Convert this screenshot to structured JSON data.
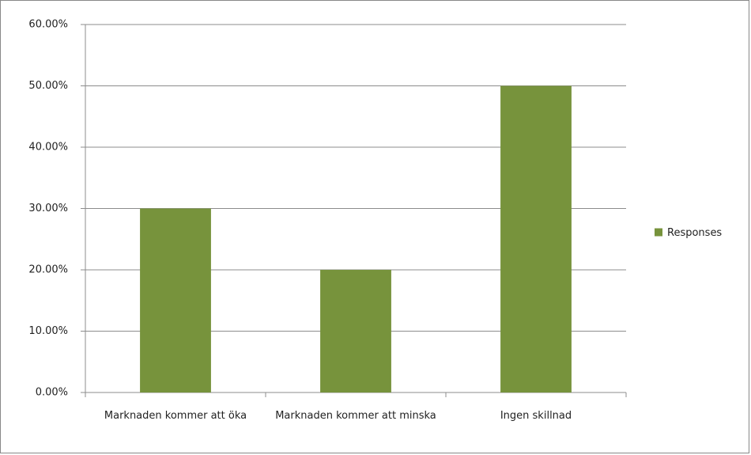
{
  "chart_data": {
    "type": "bar",
    "categories": [
      "Marknaden kommer att öka",
      "Marknaden kommer att minska",
      "Ingen skillnad"
    ],
    "series": [
      {
        "name": "Responses",
        "color": "#77933c",
        "values": [
          30,
          20,
          50
        ]
      }
    ],
    "ylim": [
      0,
      60
    ],
    "yticks": [
      {
        "value": 0,
        "label": "0.00%"
      },
      {
        "value": 10,
        "label": "10.00%"
      },
      {
        "value": 20,
        "label": "20.00%"
      },
      {
        "value": 30,
        "label": "30.00%"
      },
      {
        "value": 40,
        "label": "40.00%"
      },
      {
        "value": 50,
        "label": "50.00%"
      },
      {
        "value": 60,
        "label": "60.00%"
      }
    ],
    "grid": true,
    "legend": "right"
  }
}
